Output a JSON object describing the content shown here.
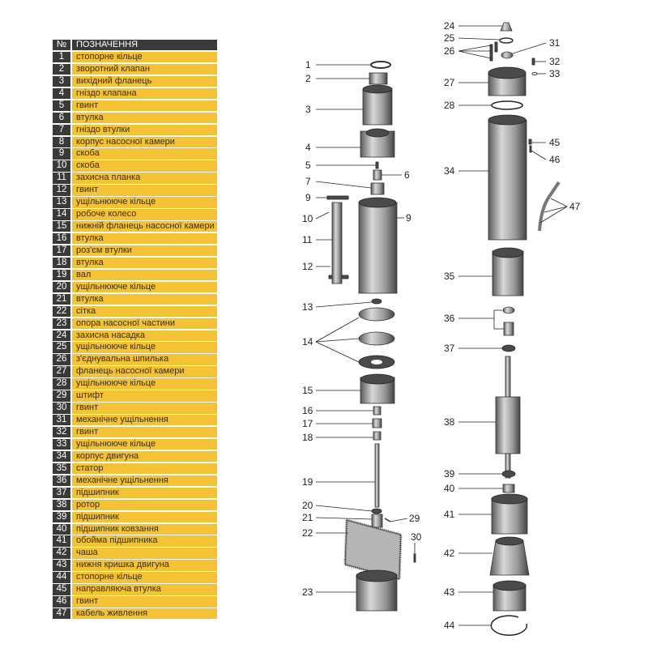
{
  "legend": {
    "header": {
      "num": "№",
      "name": "ПОЗНАЧЕННЯ"
    },
    "rows": [
      {
        "num": "1",
        "name": "стопорне кільце"
      },
      {
        "num": "2",
        "name": "зворотний клапан"
      },
      {
        "num": "3",
        "name": "вихідний фланець"
      },
      {
        "num": "4",
        "name": "гніздо клапана"
      },
      {
        "num": "5",
        "name": "гвинт"
      },
      {
        "num": "6",
        "name": "втулка"
      },
      {
        "num": "7",
        "name": "гніздо втулки"
      },
      {
        "num": "8",
        "name": "корпус насосної камери"
      },
      {
        "num": "9",
        "name": "скоба"
      },
      {
        "num": "10",
        "name": "скоба"
      },
      {
        "num": "11",
        "name": "захисна планка"
      },
      {
        "num": "12",
        "name": "гвинт"
      },
      {
        "num": "13",
        "name": "ущільнююче кільце"
      },
      {
        "num": "14",
        "name": "робоче колесо"
      },
      {
        "num": "15",
        "name": "нижній фланець насосної камери"
      },
      {
        "num": "16",
        "name": "втулка"
      },
      {
        "num": "17",
        "name": "роз'єм втулки"
      },
      {
        "num": "18",
        "name": "втулка"
      },
      {
        "num": "19",
        "name": "вал"
      },
      {
        "num": "20",
        "name": "ущільнююче кільце"
      },
      {
        "num": "21",
        "name": "втулка"
      },
      {
        "num": "22",
        "name": "сітка"
      },
      {
        "num": "23",
        "name": "опора насосної частини"
      },
      {
        "num": "24",
        "name": "захисна насадка"
      },
      {
        "num": "25",
        "name": "ущільнююче кільце"
      },
      {
        "num": "26",
        "name": "з'єднувальна шпилька"
      },
      {
        "num": "27",
        "name": "фланець насосної камери"
      },
      {
        "num": "28",
        "name": "ущільнююче кільце"
      },
      {
        "num": "29",
        "name": "штифт"
      },
      {
        "num": "30",
        "name": "гвинт"
      },
      {
        "num": "31",
        "name": "механічне ущільнення"
      },
      {
        "num": "32",
        "name": "гвинт"
      },
      {
        "num": "33",
        "name": "ущільнююче кільце"
      },
      {
        "num": "34",
        "name": "корпус двигуна"
      },
      {
        "num": "35",
        "name": "статор"
      },
      {
        "num": "36",
        "name": "механічне ущільнення"
      },
      {
        "num": "37",
        "name": "підшипник"
      },
      {
        "num": "38",
        "name": "ротор"
      },
      {
        "num": "39",
        "name": "підшипник"
      },
      {
        "num": "40",
        "name": "підшипник ковзання"
      },
      {
        "num": "41",
        "name": "обойма підшипника"
      },
      {
        "num": "42",
        "name": "чаша"
      },
      {
        "num": "43",
        "name": "нижня кришка двигуна"
      },
      {
        "num": "44",
        "name": "стопорне кільце"
      },
      {
        "num": "45",
        "name": "направляюча втулка"
      },
      {
        "num": "46",
        "name": "гвинт"
      },
      {
        "num": "47",
        "name": "кабель живлення"
      }
    ]
  },
  "diagram": {
    "callouts": [
      "1",
      "2",
      "3",
      "4",
      "5",
      "6",
      "7",
      "9",
      "10",
      "9",
      "11",
      "12",
      "13",
      "14",
      "15",
      "16",
      "17",
      "18",
      "19",
      "20",
      "21",
      "29",
      "22",
      "30",
      "23",
      "24",
      "25",
      "31",
      "26",
      "32",
      "33",
      "27",
      "28",
      "45",
      "46",
      "34",
      "47",
      "35",
      "36",
      "37",
      "38",
      "39",
      "40",
      "41",
      "42",
      "43",
      "44"
    ]
  },
  "colors": {
    "header_bg": "#3b3a38",
    "row_bg": "#f3c235"
  }
}
